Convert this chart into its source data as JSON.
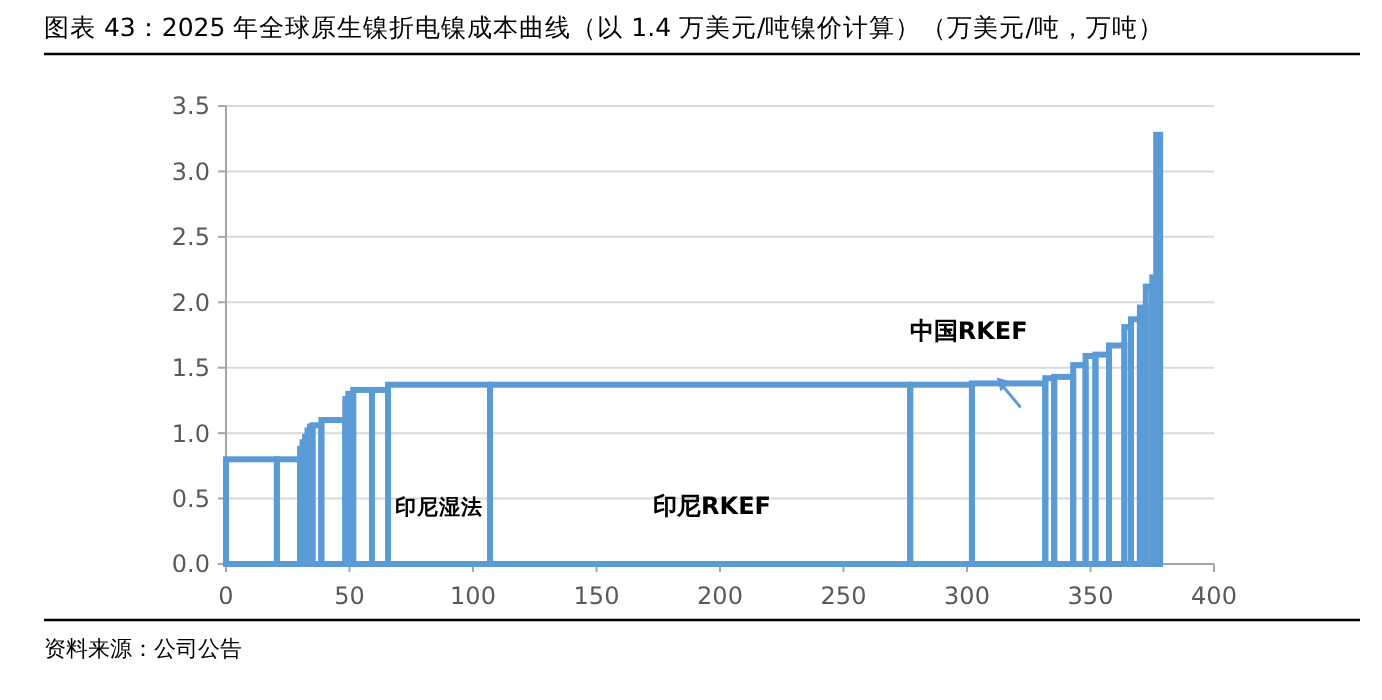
{
  "chart_data": {
    "type": "histogram",
    "title": "图表 43：2025 年全球原生镍折电镍成本曲线（以 1.4 万美元/吨镍价计算）（万美元/吨，万吨）",
    "bins": [
      0,
      20.6,
      30,
      31,
      32,
      33,
      34,
      35,
      38.6,
      48.3,
      49.5,
      51.5,
      59.1,
      65.6,
      106.9,
      277,
      302,
      331.7,
      335.3,
      343,
      348,
      352,
      357.5,
      363.7,
      366.4,
      370,
      372.4,
      375,
      376.6,
      378.2
    ],
    "values": [
      0.8,
      0.8,
      0.88,
      0.93,
      0.97,
      1.02,
      1.05,
      1.06,
      1.1,
      1.26,
      1.3,
      1.33,
      1.33,
      1.37,
      1.37,
      1.37,
      1.38,
      1.42,
      1.43,
      1.52,
      1.59,
      1.6,
      1.67,
      1.81,
      1.87,
      1.96,
      2.12,
      2.19,
      3.28
    ],
    "color": "#5b9bd5",
    "xlim": [
      0,
      400
    ],
    "xticks": [
      0,
      50,
      100,
      150,
      200,
      250,
      300,
      350,
      400
    ],
    "ylim": [
      0,
      3.5
    ],
    "yticks": [
      {
        "value": 0,
        "label": "0.0"
      },
      {
        "value": 0.5,
        "label": "0.5"
      },
      {
        "value": 1,
        "label": "1.0"
      },
      {
        "value": 1.5,
        "label": "1.5"
      },
      {
        "value": 2,
        "label": "2.0"
      },
      {
        "value": 2.5,
        "label": "2.5"
      },
      {
        "value": 3,
        "label": "3.0"
      },
      {
        "value": 3.5,
        "label": "3.5"
      }
    ],
    "grid": "y",
    "annotations": [
      "印尼湿法",
      "印尼RKEF",
      {
        "text": "中国RKEF",
        "x": 312,
        "y": 1.38
      },
      "资料来源：公司公告"
    ]
  }
}
